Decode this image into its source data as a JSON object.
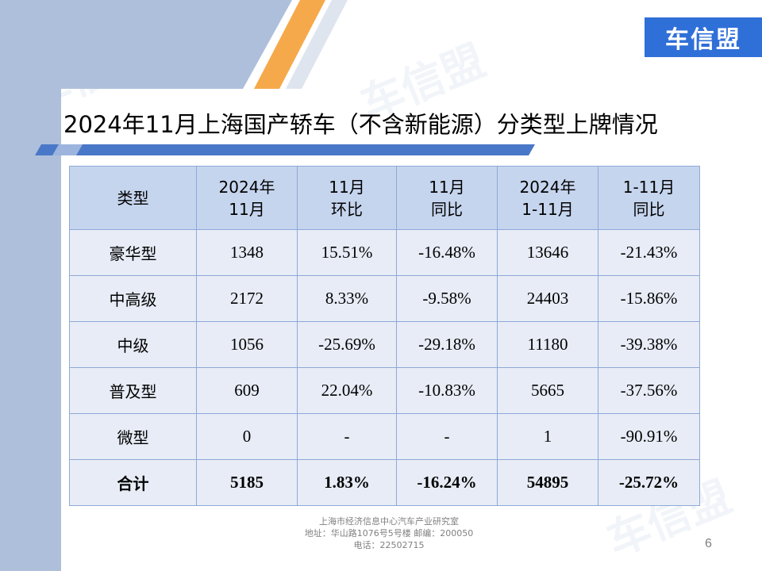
{
  "logo": {
    "text": "车信盟"
  },
  "watermark": {
    "text": "车信盟"
  },
  "slide": {
    "title": "2024年11月上海国产轿车（不含新能源）分类型上牌情况",
    "page_number": "6"
  },
  "table": {
    "headers": [
      [
        "类型"
      ],
      [
        "2024年",
        "11月"
      ],
      [
        "11月",
        "环比"
      ],
      [
        "11月",
        "同比"
      ],
      [
        "2024年",
        "1-11月"
      ],
      [
        "1-11月",
        "同比"
      ]
    ],
    "rows": [
      [
        "豪华型",
        "1348",
        "15.51%",
        "-16.48%",
        "13646",
        "-21.43%"
      ],
      [
        "中高级",
        "2172",
        "8.33%",
        "-9.58%",
        "24403",
        "-15.86%"
      ],
      [
        "中级",
        "1056",
        "-25.69%",
        "-29.18%",
        "11180",
        "-39.38%"
      ],
      [
        "普及型",
        "609",
        "22.04%",
        "-10.83%",
        "5665",
        "-37.56%"
      ],
      [
        "微型",
        "0",
        "-",
        "-",
        "1",
        "-90.91%"
      ],
      [
        "合计",
        "5185",
        "1.83%",
        "-16.24%",
        "54895",
        "-25.72%"
      ]
    ]
  },
  "footer": {
    "line1": "上海市经济信息中心汽车产业研究室",
    "line2": "地址：华山路1076号5号楼    邮编：200050",
    "line3": "电话：22502715"
  },
  "colors": {
    "header_fill": "#c6d5ee",
    "body_fill": "#e7ecf6",
    "border": "#8ea9d8",
    "side_band": "#aebfdc",
    "accent_orange": "#f6a94a",
    "logo_blue": "#2f6fd8"
  }
}
